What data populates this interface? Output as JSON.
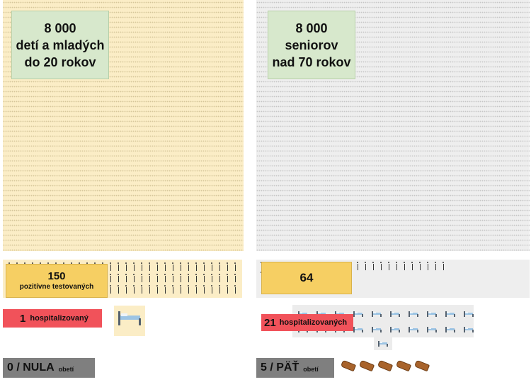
{
  "youth": {
    "count": "8 000",
    "line1": "detí a mladých",
    "line2": "do 20 rokov",
    "positive_count": "150",
    "positive_label": "pozitívne testovaných",
    "hospitalized_count": "1",
    "hospitalized_label": "hospitalizovaný",
    "victims_count": "0 / NULA",
    "victims_label": "obetí"
  },
  "seniors": {
    "count": "8 000",
    "line1": "seniorov",
    "line2": "nad 70 rokov",
    "positive_count": "64",
    "hospitalized_count": "21",
    "hospitalized_label": "hospitalizovaných",
    "victims_count": "5 / PÄŤ",
    "victims_label": "obetí",
    "coffins_shown": 5
  },
  "colors": {
    "youth_bg": "#fbedc6",
    "senior_bg": "#eeeeee",
    "label_bg": "#d7e8cc",
    "positive": "#f6cf63",
    "hospitalized": "#f1525a",
    "victims": "#7f7f7f"
  },
  "icons": {
    "person": "person-icon",
    "bed": "bed-icon",
    "coffin": "coffin-icon"
  }
}
